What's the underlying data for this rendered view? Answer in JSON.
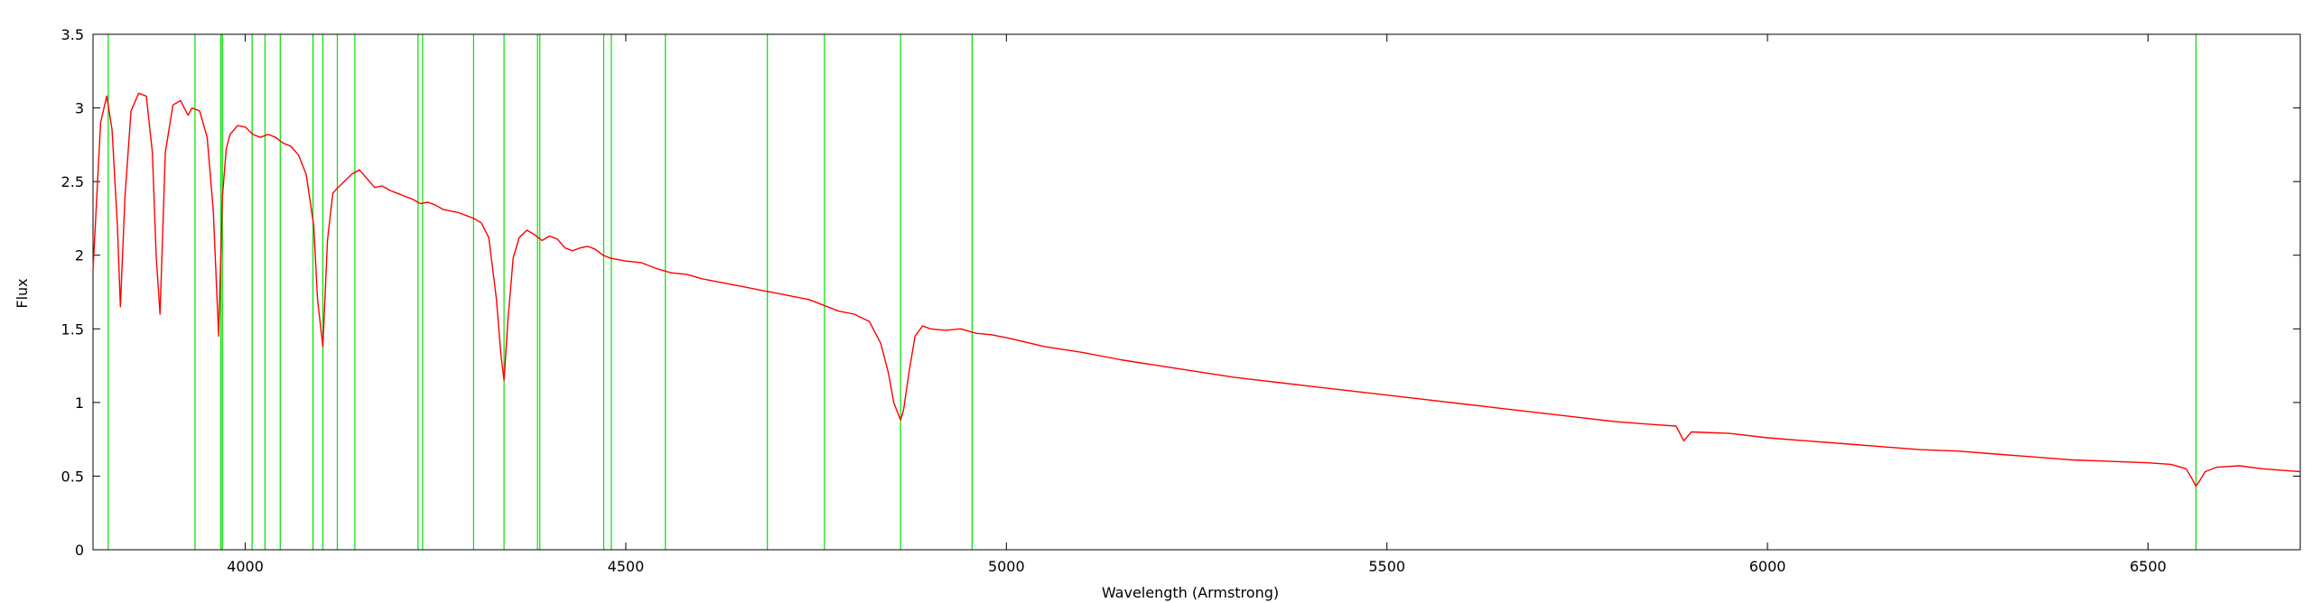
{
  "chart_data": {
    "type": "line",
    "title": "",
    "xlabel": "Wavelength (Armstrong)",
    "ylabel": "Flux",
    "xlim": [
      3800,
      6700
    ],
    "ylim": [
      0,
      3.5
    ],
    "xticks": [
      4000,
      4500,
      5000,
      5500,
      6000,
      6500
    ],
    "yticks": [
      0,
      0.5,
      1,
      1.5,
      2,
      2.5,
      3,
      3.5
    ],
    "ytick_labels": [
      "0",
      "0.5",
      "1",
      "1.5",
      "2",
      "2.5",
      "3",
      "3.5"
    ],
    "grid": false,
    "series": [
      {
        "color": "#ff0000",
        "x": [
          3800,
          3810,
          3818,
          3825,
          3832,
          3836,
          3842,
          3850,
          3860,
          3870,
          3878,
          3883,
          3888,
          3895,
          3905,
          3915,
          3925,
          3930,
          3940,
          3950,
          3958,
          3965,
          3970,
          3975,
          3980,
          3990,
          4000,
          4010,
          4020,
          4030,
          4040,
          4050,
          4060,
          4070,
          4080,
          4090,
          4095,
          4102,
          4108,
          4115,
          4120,
          4130,
          4140,
          4150,
          4160,
          4170,
          4180,
          4190,
          4200,
          4210,
          4220,
          4230,
          4240,
          4250,
          4260,
          4270,
          4280,
          4290,
          4300,
          4310,
          4320,
          4330,
          4336,
          4340,
          4345,
          4352,
          4360,
          4370,
          4380,
          4390,
          4400,
          4410,
          4420,
          4430,
          4440,
          4450,
          4460,
          4470,
          4480,
          4490,
          4500,
          4520,
          4540,
          4560,
          4580,
          4600,
          4620,
          4640,
          4660,
          4680,
          4700,
          4720,
          4740,
          4760,
          4780,
          4800,
          4820,
          4835,
          4845,
          4852,
          4858,
          4861,
          4865,
          4872,
          4880,
          4890,
          4900,
          4920,
          4940,
          4960,
          4980,
          5000,
          5050,
          5100,
          5150,
          5200,
          5250,
          5300,
          5350,
          5400,
          5450,
          5500,
          5550,
          5600,
          5650,
          5700,
          5750,
          5800,
          5850,
          5880,
          5890,
          5900,
          5950,
          6000,
          6050,
          6100,
          6150,
          6200,
          6250,
          6300,
          6350,
          6400,
          6450,
          6500,
          6530,
          6550,
          6558,
          6563,
          6568,
          6575,
          6590,
          6620,
          6650,
          6700
        ],
        "y": [
          1.9,
          2.9,
          3.08,
          2.85,
          2.2,
          1.65,
          2.4,
          2.98,
          3.1,
          3.08,
          2.7,
          2.0,
          1.6,
          2.7,
          3.02,
          3.05,
          2.95,
          3.0,
          2.98,
          2.8,
          2.3,
          1.45,
          2.4,
          2.72,
          2.82,
          2.88,
          2.87,
          2.82,
          2.8,
          2.82,
          2.8,
          2.76,
          2.74,
          2.68,
          2.55,
          2.2,
          1.7,
          1.38,
          2.1,
          2.42,
          2.45,
          2.5,
          2.55,
          2.58,
          2.52,
          2.46,
          2.47,
          2.44,
          2.42,
          2.4,
          2.38,
          2.35,
          2.36,
          2.34,
          2.31,
          2.3,
          2.29,
          2.27,
          2.25,
          2.22,
          2.12,
          1.7,
          1.32,
          1.15,
          1.55,
          1.98,
          2.12,
          2.17,
          2.14,
          2.1,
          2.13,
          2.11,
          2.05,
          2.03,
          2.05,
          2.06,
          2.04,
          2.0,
          1.98,
          1.97,
          1.96,
          1.95,
          1.91,
          1.88,
          1.87,
          1.84,
          1.82,
          1.8,
          1.78,
          1.76,
          1.74,
          1.72,
          1.7,
          1.66,
          1.62,
          1.6,
          1.55,
          1.4,
          1.2,
          1.0,
          0.92,
          0.88,
          0.95,
          1.2,
          1.45,
          1.52,
          1.5,
          1.49,
          1.5,
          1.47,
          1.46,
          1.44,
          1.38,
          1.34,
          1.29,
          1.25,
          1.21,
          1.17,
          1.14,
          1.11,
          1.08,
          1.05,
          1.02,
          0.99,
          0.96,
          0.93,
          0.9,
          0.87,
          0.85,
          0.84,
          0.74,
          0.8,
          0.79,
          0.76,
          0.74,
          0.72,
          0.7,
          0.68,
          0.67,
          0.65,
          0.63,
          0.61,
          0.6,
          0.59,
          0.58,
          0.55,
          0.48,
          0.43,
          0.47,
          0.53,
          0.56,
          0.57,
          0.55,
          0.53
        ]
      }
    ],
    "vertical_lines": {
      "color": "#00e000",
      "x": [
        3820,
        3934,
        3968,
        3970,
        4009,
        4026,
        4046,
        4089,
        4102,
        4121,
        4144,
        4227,
        4233,
        4300,
        4340,
        4384,
        4387,
        4471,
        4481,
        4552,
        4686,
        4761,
        4861,
        4955,
        6563
      ]
    }
  }
}
